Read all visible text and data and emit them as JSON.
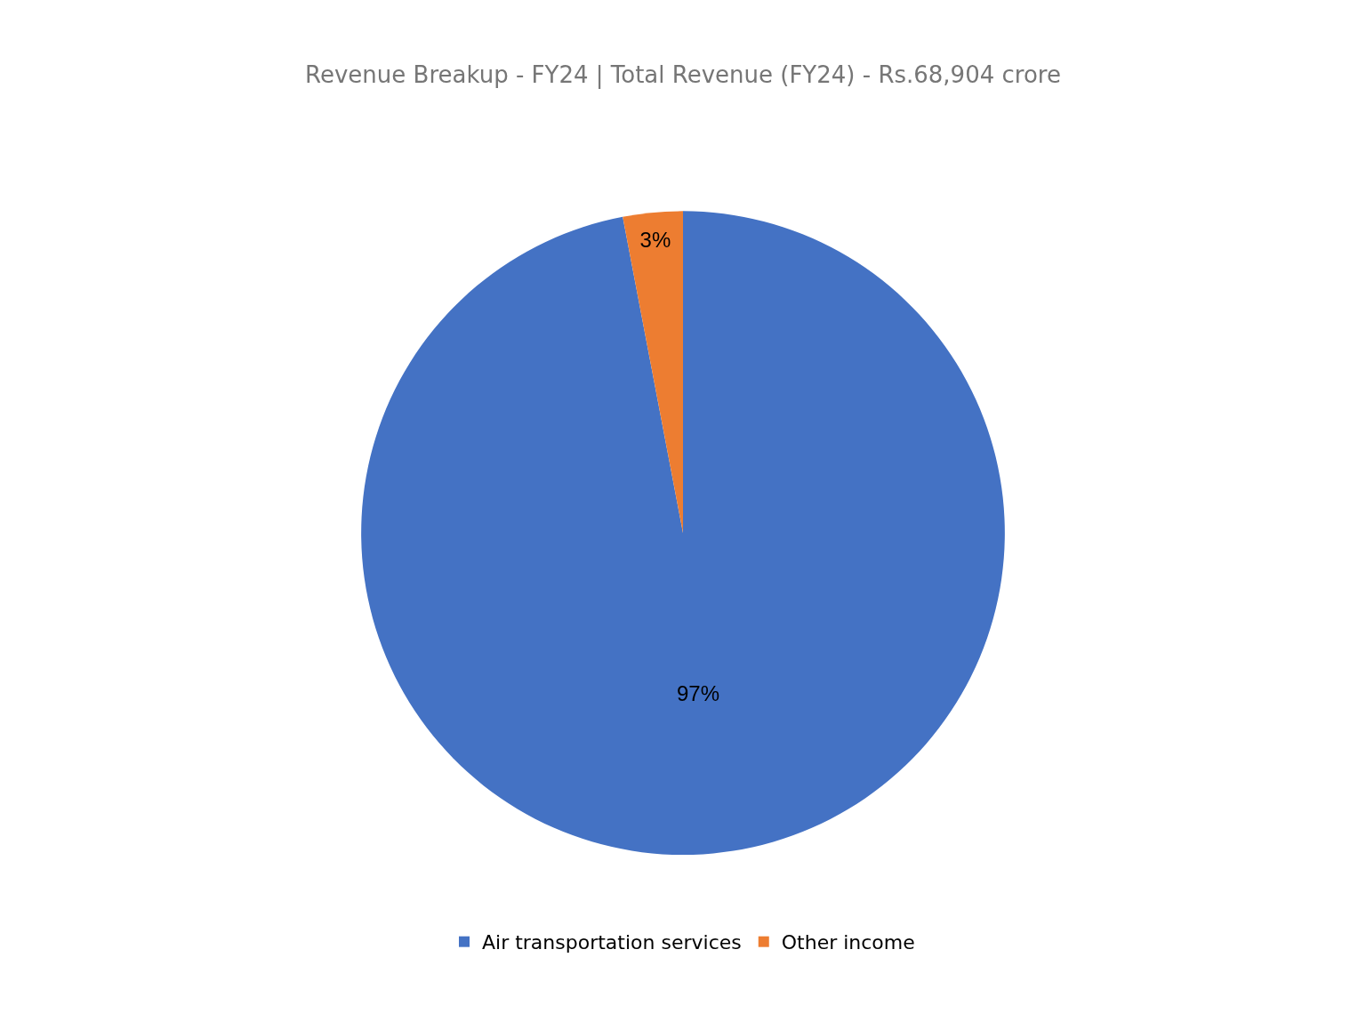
{
  "chart_data": {
    "type": "pie",
    "title": "Revenue Breakup - FY24 | Total Revenue (FY24) - Rs.68,904 crore",
    "categories": [
      "Air transportation services",
      "Other income"
    ],
    "values": [
      97,
      3
    ],
    "colors": [
      "#4472c4",
      "#ed7d31"
    ],
    "value_labels": [
      "97%",
      "3%"
    ],
    "legend": "bottom"
  }
}
